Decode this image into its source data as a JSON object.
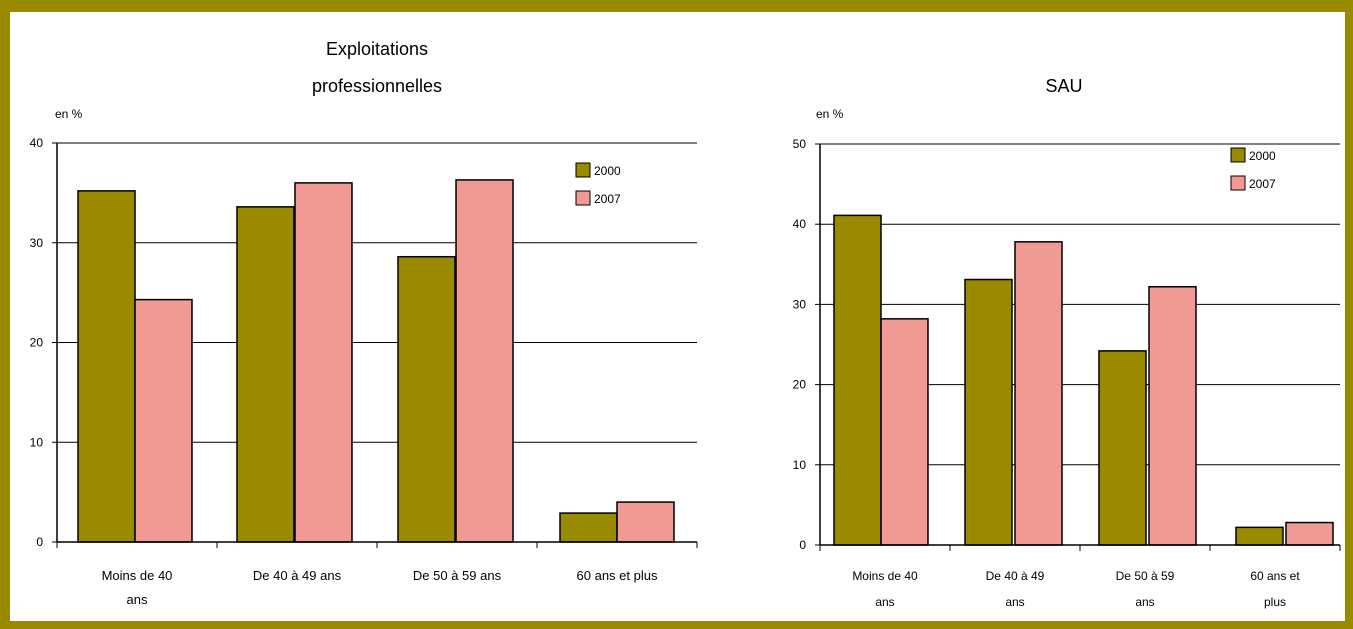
{
  "colors": {
    "frame": "#9a8a00",
    "series_2000": "#998a00",
    "series_2007": "#f09a93"
  },
  "chart_data": [
    {
      "type": "bar",
      "title": "Exploitations professionnelles",
      "title_lines": [
        "Exploitations",
        "professionnelles"
      ],
      "unit_label": "en %",
      "categories": [
        "Moins de 40 ans",
        "De 40 à 49 ans",
        "De 50 à 59 ans",
        "60 ans et plus"
      ],
      "category_lines": [
        [
          "Moins de 40",
          "ans"
        ],
        [
          "De 40 à 49 ans"
        ],
        [
          "De 50 à 59 ans"
        ],
        [
          "60 ans et plus"
        ]
      ],
      "series": [
        {
          "name": "2000",
          "values": [
            35.2,
            33.6,
            28.6,
            2.9
          ]
        },
        {
          "name": "2007",
          "values": [
            24.3,
            36.0,
            36.3,
            4.0
          ]
        }
      ],
      "ylim": [
        0,
        40
      ],
      "yticks": [
        0,
        10,
        20,
        30,
        40
      ],
      "grid": true,
      "legend_position": "top-right"
    },
    {
      "type": "bar",
      "title": "SAU",
      "title_lines": [
        "SAU"
      ],
      "unit_label": "en %",
      "categories": [
        "Moins de 40 ans",
        "De 40 à 49 ans",
        "De 50 à 59 ans",
        "60 ans et plus"
      ],
      "category_lines": [
        [
          "Moins de 40",
          "ans"
        ],
        [
          "De 40 à 49",
          "ans"
        ],
        [
          "De 50 à 59",
          "ans"
        ],
        [
          "60 ans et",
          "plus"
        ]
      ],
      "series": [
        {
          "name": "2000",
          "values": [
            41.1,
            33.1,
            24.2,
            2.2
          ]
        },
        {
          "name": "2007",
          "values": [
            28.2,
            37.8,
            32.2,
            2.8
          ]
        }
      ],
      "ylim": [
        0,
        50
      ],
      "yticks": [
        0,
        10,
        20,
        30,
        40,
        50
      ],
      "grid": true,
      "legend_position": "top-right"
    }
  ]
}
